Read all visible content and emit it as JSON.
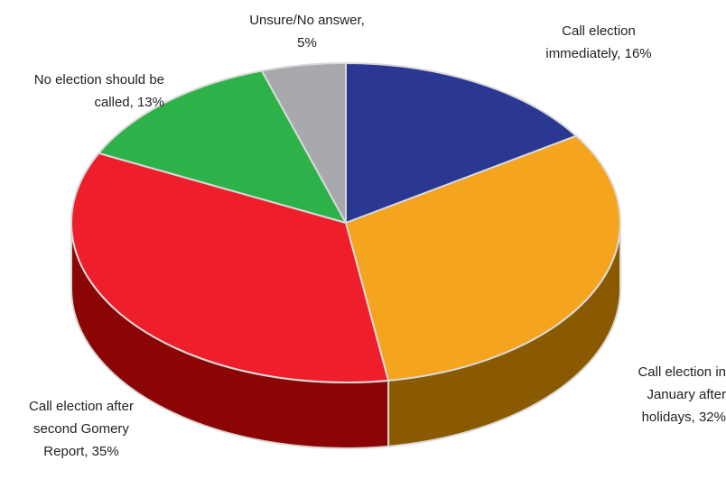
{
  "chart_data": {
    "type": "pie",
    "style": "3d",
    "unit": "%",
    "slices": [
      {
        "label": "Call election immediately, 16%",
        "name": "Call election immediately",
        "value": 16,
        "color": "#2a3894",
        "side_color": "#1a2460"
      },
      {
        "label": "Call election in January after holidays, 32%",
        "name": "Call election in January after holidays",
        "value": 32,
        "color": "#f5a41d",
        "side_color": "#8a5a00"
      },
      {
        "label": "Call election after second Gomery Report, 35%",
        "name": "Call election after second Gomery Report",
        "value": 35,
        "color": "#ee1f2b",
        "side_color": "#8b0505"
      },
      {
        "label": "No election should be called, 13%",
        "name": "No election should be called",
        "value": 13,
        "color": "#2db24a",
        "side_color": "#17662a"
      },
      {
        "label": "Unsure/No answer, 5%",
        "name": "Unsure/No answer",
        "value": 5,
        "color": "#a7a9ac",
        "side_color": "#5e6063"
      }
    ]
  }
}
